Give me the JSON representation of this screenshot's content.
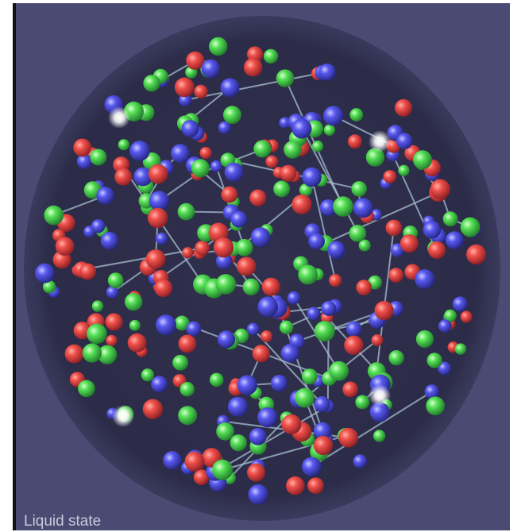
{
  "caption": "Liquid state"
}
